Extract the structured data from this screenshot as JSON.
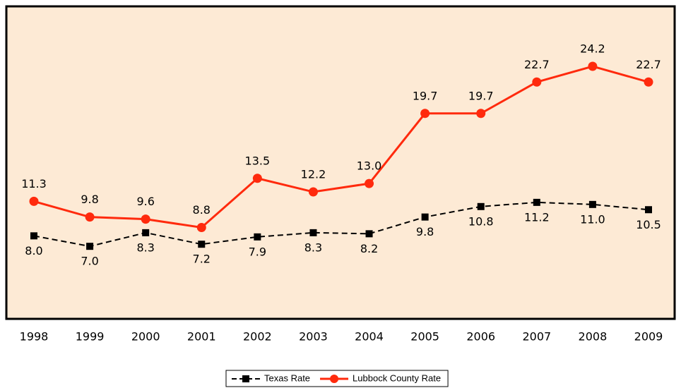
{
  "chart_data": {
    "type": "line",
    "categories": [
      "1998",
      "1999",
      "2000",
      "2001",
      "2002",
      "2003",
      "2004",
      "2005",
      "2006",
      "2007",
      "2008",
      "2009"
    ],
    "series": [
      {
        "name": "Texas Rate",
        "color": "#000000",
        "values": [
          8.0,
          7.0,
          8.3,
          7.2,
          7.9,
          8.3,
          8.2,
          9.8,
          10.8,
          11.2,
          11.0,
          10.5
        ],
        "value_labels": [
          "8.0",
          "7.0",
          "8.3",
          "7.2",
          "7.9",
          "8.3",
          "8.2",
          "9.8",
          "10.8",
          "11.2",
          "11.0",
          "10.5"
        ]
      },
      {
        "name": "Lubbock County Rate",
        "color": "#ff2a0d",
        "values": [
          11.3,
          9.8,
          9.6,
          8.8,
          13.5,
          12.2,
          13.0,
          19.7,
          19.7,
          22.7,
          24.2,
          22.7
        ],
        "value_labels": [
          "11.3",
          "9.8",
          "9.6",
          "8.8",
          "13.5",
          "12.2",
          "13.0",
          "19.7",
          "19.7",
          "22.7",
          "24.2",
          "22.7"
        ]
      }
    ],
    "ylim": [
      0,
      30
    ],
    "legend": "bottom"
  }
}
